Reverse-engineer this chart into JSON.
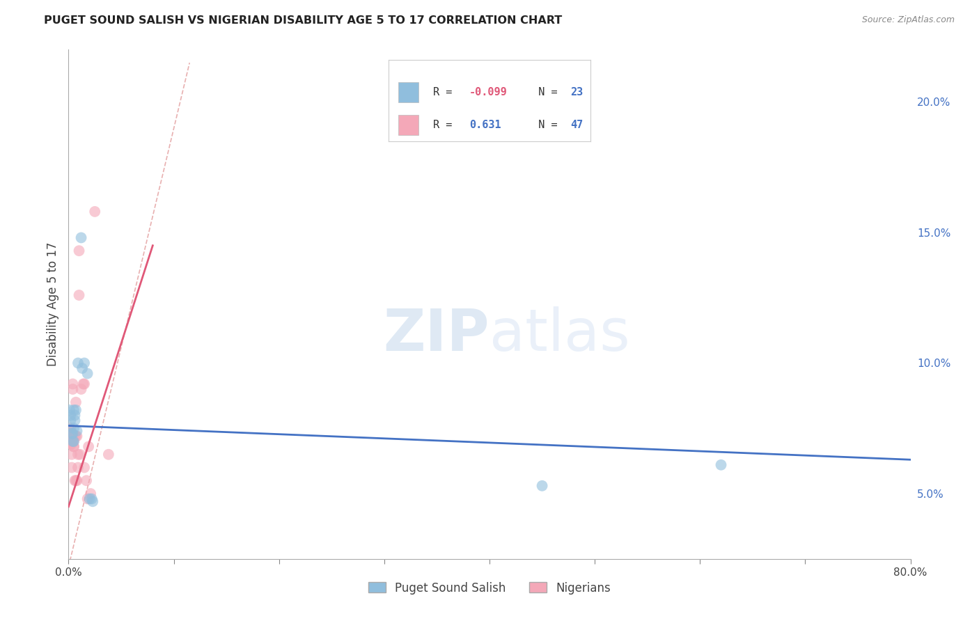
{
  "title": "PUGET SOUND SALISH VS NIGERIAN DISABILITY AGE 5 TO 17 CORRELATION CHART",
  "source": "Source: ZipAtlas.com",
  "ylabel": "Disability Age 5 to 17",
  "legend_blue_label": "Puget Sound Salish",
  "legend_pink_label": "Nigerians",
  "xlim": [
    0.0,
    0.8
  ],
  "ylim": [
    0.025,
    0.22
  ],
  "yticks_right": [
    0.05,
    0.1,
    0.15,
    0.2
  ],
  "ytick_right_labels": [
    "5.0%",
    "10.0%",
    "15.0%",
    "20.0%"
  ],
  "watermark_zip": "ZIP",
  "watermark_atlas": "atlas",
  "bg_color": "#ffffff",
  "grid_color": "#cccccc",
  "blue_color": "#90bedd",
  "pink_color": "#f4a8b8",
  "blue_scatter": [
    [
      0.001,
      0.082
    ],
    [
      0.002,
      0.078
    ],
    [
      0.002,
      0.08
    ],
    [
      0.003,
      0.073
    ],
    [
      0.004,
      0.073
    ],
    [
      0.004,
      0.07
    ],
    [
      0.005,
      0.082
    ],
    [
      0.005,
      0.075
    ],
    [
      0.005,
      0.07
    ],
    [
      0.006,
      0.08
    ],
    [
      0.006,
      0.078
    ],
    [
      0.007,
      0.082
    ],
    [
      0.008,
      0.074
    ],
    [
      0.009,
      0.1
    ],
    [
      0.012,
      0.148
    ],
    [
      0.013,
      0.098
    ],
    [
      0.015,
      0.1
    ],
    [
      0.018,
      0.096
    ],
    [
      0.02,
      0.048
    ],
    [
      0.022,
      0.048
    ],
    [
      0.023,
      0.047
    ],
    [
      0.45,
      0.053
    ],
    [
      0.62,
      0.061
    ]
  ],
  "pink_scatter": [
    [
      0.001,
      0.073
    ],
    [
      0.001,
      0.074
    ],
    [
      0.001,
      0.073
    ],
    [
      0.001,
      0.072
    ],
    [
      0.001,
      0.073
    ],
    [
      0.001,
      0.071
    ],
    [
      0.001,
      0.07
    ],
    [
      0.002,
      0.075
    ],
    [
      0.002,
      0.072
    ],
    [
      0.002,
      0.072
    ],
    [
      0.002,
      0.071
    ],
    [
      0.002,
      0.07
    ],
    [
      0.002,
      0.069
    ],
    [
      0.003,
      0.073
    ],
    [
      0.003,
      0.072
    ],
    [
      0.003,
      0.07
    ],
    [
      0.003,
      0.069
    ],
    [
      0.003,
      0.065
    ],
    [
      0.003,
      0.06
    ],
    [
      0.004,
      0.072
    ],
    [
      0.004,
      0.09
    ],
    [
      0.004,
      0.092
    ],
    [
      0.005,
      0.07
    ],
    [
      0.005,
      0.068
    ],
    [
      0.005,
      0.068
    ],
    [
      0.006,
      0.072
    ],
    [
      0.006,
      0.055
    ],
    [
      0.007,
      0.072
    ],
    [
      0.007,
      0.085
    ],
    [
      0.007,
      0.055
    ],
    [
      0.008,
      0.072
    ],
    [
      0.008,
      0.055
    ],
    [
      0.009,
      0.065
    ],
    [
      0.009,
      0.06
    ],
    [
      0.01,
      0.143
    ],
    [
      0.01,
      0.126
    ],
    [
      0.011,
      0.065
    ],
    [
      0.012,
      0.09
    ],
    [
      0.014,
      0.092
    ],
    [
      0.015,
      0.092
    ],
    [
      0.015,
      0.06
    ],
    [
      0.017,
      0.055
    ],
    [
      0.018,
      0.048
    ],
    [
      0.019,
      0.068
    ],
    [
      0.021,
      0.05
    ],
    [
      0.025,
      0.158
    ],
    [
      0.038,
      0.065
    ]
  ],
  "blue_line_x": [
    0.0,
    0.8
  ],
  "blue_line_y": [
    0.076,
    0.063
  ],
  "pink_line_x": [
    0.0,
    0.08
  ],
  "pink_line_y": [
    0.045,
    0.145
  ],
  "diag_line_x": [
    0.0,
    0.115
  ],
  "diag_line_y": [
    0.022,
    0.215
  ],
  "diag_color": "#e8b0b0",
  "blue_trend_color": "#4472c4",
  "pink_trend_color": "#e05878"
}
